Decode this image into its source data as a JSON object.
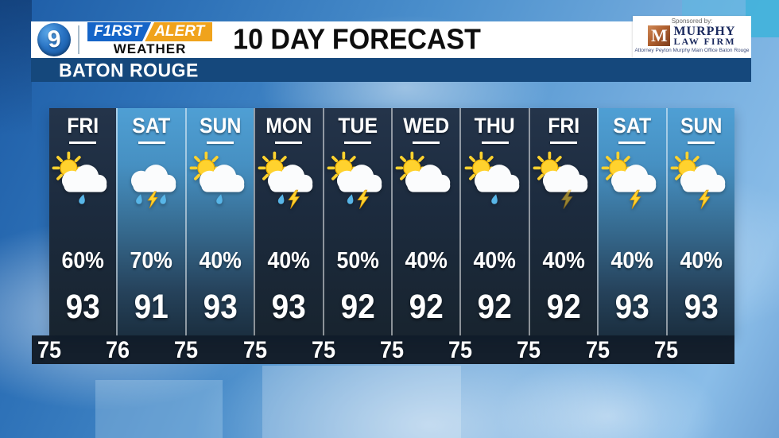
{
  "header": {
    "station_number": "9",
    "brand": {
      "first": "F1RST",
      "alert": "ALERT",
      "weather": "WEATHER"
    },
    "title": "10 DAY FORECAST",
    "location": "BATON ROUGE",
    "sponsor": {
      "sponsored_by": "Sponsored by:",
      "monogram": "M",
      "name_line1": "MURPHY",
      "name_line2": "LAW FIRM",
      "tagline": "Attorney Peyton Murphy Main Office Baton Rouge"
    }
  },
  "colors": {
    "brand_blue": "#1565c8",
    "brand_orange": "#f0a31c",
    "location_bar_blue": "#15487c",
    "weekday_column": "#1e2c3f",
    "weekend_column_top": "#4f9fd4",
    "lows_strip": "#141f2c",
    "sun_yellow": "#ffd22e",
    "rain_blue": "#58b6e8",
    "lightning_yellow": "#ffd22e",
    "murphy_copper": "#b0602f",
    "murphy_navy": "#1b2a5e"
  },
  "forecast": {
    "days": [
      {
        "label": "FRI",
        "weekend": false,
        "icon": {
          "name": "partly-sunny-showers",
          "sun": true,
          "drops": 1,
          "bolt": false,
          "dim": false
        },
        "precip": "60%",
        "high": "93",
        "low": "75"
      },
      {
        "label": "SAT",
        "weekend": true,
        "icon": {
          "name": "thunderstorms",
          "sun": false,
          "drops": 2,
          "bolt": true,
          "dim": false
        },
        "precip": "70%",
        "high": "91",
        "low": "76"
      },
      {
        "label": "SUN",
        "weekend": true,
        "icon": {
          "name": "partly-sunny-showers",
          "sun": true,
          "drops": 1,
          "bolt": false,
          "dim": false
        },
        "precip": "40%",
        "high": "93",
        "low": "75"
      },
      {
        "label": "MON",
        "weekend": false,
        "icon": {
          "name": "scattered-storms",
          "sun": true,
          "drops": 1,
          "bolt": true,
          "dim": false
        },
        "precip": "40%",
        "high": "93",
        "low": "75"
      },
      {
        "label": "TUE",
        "weekend": false,
        "icon": {
          "name": "scattered-storms",
          "sun": true,
          "drops": 1,
          "bolt": true,
          "dim": false
        },
        "precip": "50%",
        "high": "92",
        "low": "75"
      },
      {
        "label": "WED",
        "weekend": false,
        "icon": {
          "name": "partly-cloudy",
          "sun": true,
          "drops": 0,
          "bolt": false,
          "dim": false
        },
        "precip": "40%",
        "high": "92",
        "low": "75"
      },
      {
        "label": "THU",
        "weekend": false,
        "icon": {
          "name": "partly-sunny-showers",
          "sun": true,
          "drops": 1,
          "bolt": false,
          "dim": false
        },
        "precip": "40%",
        "high": "92",
        "low": "75"
      },
      {
        "label": "FRI",
        "weekend": false,
        "icon": {
          "name": "isolated-storms",
          "sun": true,
          "drops": 0,
          "bolt": true,
          "dim": true
        },
        "precip": "40%",
        "high": "92",
        "low": "75"
      },
      {
        "label": "SAT",
        "weekend": true,
        "icon": {
          "name": "scattered-storms",
          "sun": true,
          "drops": 0,
          "bolt": true,
          "dim": false
        },
        "precip": "40%",
        "high": "93",
        "low": "75"
      },
      {
        "label": "SUN",
        "weekend": true,
        "icon": {
          "name": "scattered-storms",
          "sun": true,
          "drops": 0,
          "bolt": true,
          "dim": false
        },
        "precip": "40%",
        "high": "93",
        "low": "75"
      }
    ]
  },
  "chart_data": {
    "type": "table",
    "title": "10 DAY FORECAST",
    "location": "BATON ROUGE",
    "columns": [
      "day",
      "condition",
      "precip_chance_pct",
      "high_f",
      "low_f"
    ],
    "rows": [
      [
        "FRI",
        "partly sunny with showers",
        60,
        93,
        75
      ],
      [
        "SAT",
        "thunderstorms",
        70,
        91,
        76
      ],
      [
        "SUN",
        "partly sunny with showers",
        40,
        93,
        75
      ],
      [
        "MON",
        "scattered storms",
        40,
        93,
        75
      ],
      [
        "TUE",
        "scattered storms",
        50,
        92,
        75
      ],
      [
        "WED",
        "partly cloudy",
        40,
        92,
        75
      ],
      [
        "THU",
        "partly sunny with showers",
        40,
        92,
        75
      ],
      [
        "FRI",
        "isolated storms",
        40,
        92,
        75
      ],
      [
        "SAT",
        "scattered storms",
        40,
        93,
        75
      ],
      [
        "SUN",
        "scattered storms",
        40,
        93,
        75
      ]
    ]
  }
}
